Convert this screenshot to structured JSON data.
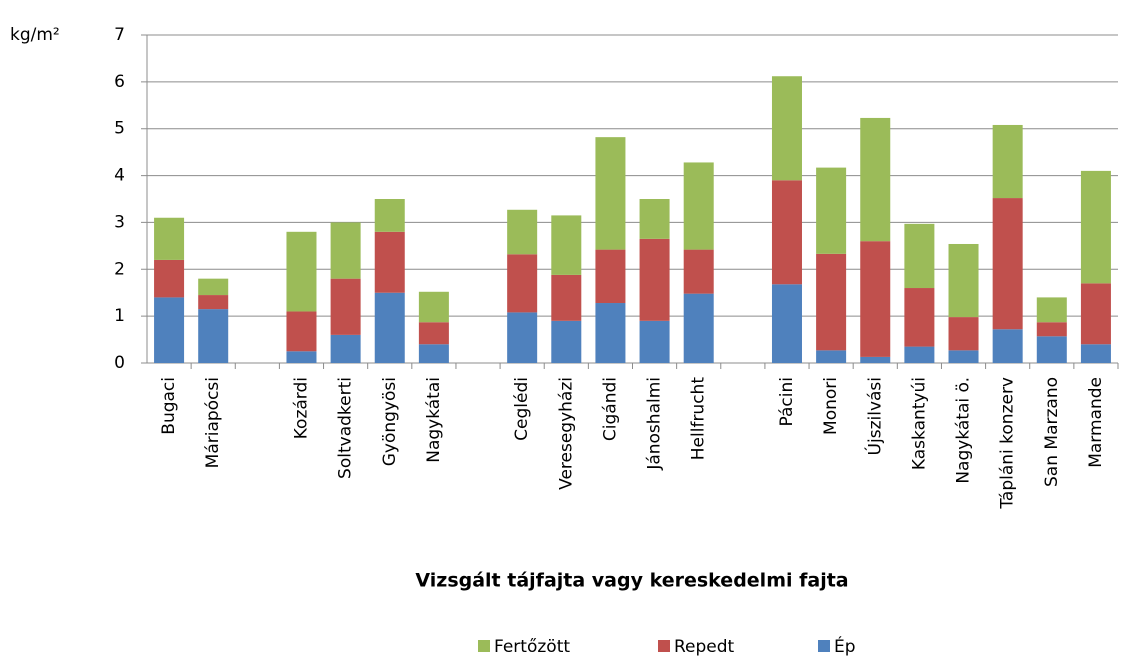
{
  "chart_data": {
    "type": "stacked_bar",
    "y_label": "kg/m²",
    "x_label": "Vizsgált tájfajta vagy kereskedelmi fajta",
    "categories": [
      "Bugaci",
      "Máriapócsi",
      null,
      "Kozárdi",
      "Soltvadkerti",
      "Gyöngyösi",
      "Nagykátai",
      null,
      "Ceglédi",
      "Veresegyházi",
      "Cigándi",
      "Jánoshalmi",
      "Hellfrucht",
      null,
      "Pácini",
      "Monori",
      "Újszilvási",
      "Kaskantyúi",
      "Nagykátai ö.",
      "Tápláni konzerv",
      "San Marzano",
      "Marmande"
    ],
    "series": [
      {
        "name": "Fertőzött",
        "color": "#9bbb59",
        "values": [
          0.9,
          0.35,
          null,
          1.7,
          1.2,
          0.7,
          0.65,
          null,
          0.95,
          1.27,
          2.4,
          0.85,
          1.86,
          null,
          2.22,
          1.84,
          2.63,
          1.37,
          1.56,
          1.56,
          0.53,
          2.4
        ]
      },
      {
        "name": "Repedt",
        "color": "#c0504d",
        "values": [
          0.8,
          0.3,
          null,
          0.85,
          1.2,
          1.3,
          0.47,
          null,
          1.24,
          0.98,
          1.14,
          1.75,
          0.94,
          null,
          2.22,
          2.06,
          2.47,
          1.25,
          0.71,
          2.8,
          0.3,
          1.3
        ]
      },
      {
        "name": "Ép",
        "color": "#4f81bd",
        "values": [
          1.4,
          1.15,
          null,
          0.25,
          0.6,
          1.5,
          0.4,
          null,
          1.08,
          0.9,
          1.28,
          0.9,
          1.48,
          null,
          1.68,
          0.27,
          0.13,
          0.35,
          0.27,
          0.72,
          0.57,
          0.4
        ]
      }
    ],
    "ylim": [
      0,
      7
    ],
    "yticks": [
      0,
      1,
      2,
      3,
      4,
      5,
      6,
      7
    ],
    "grid": true,
    "legend": "bottom"
  }
}
